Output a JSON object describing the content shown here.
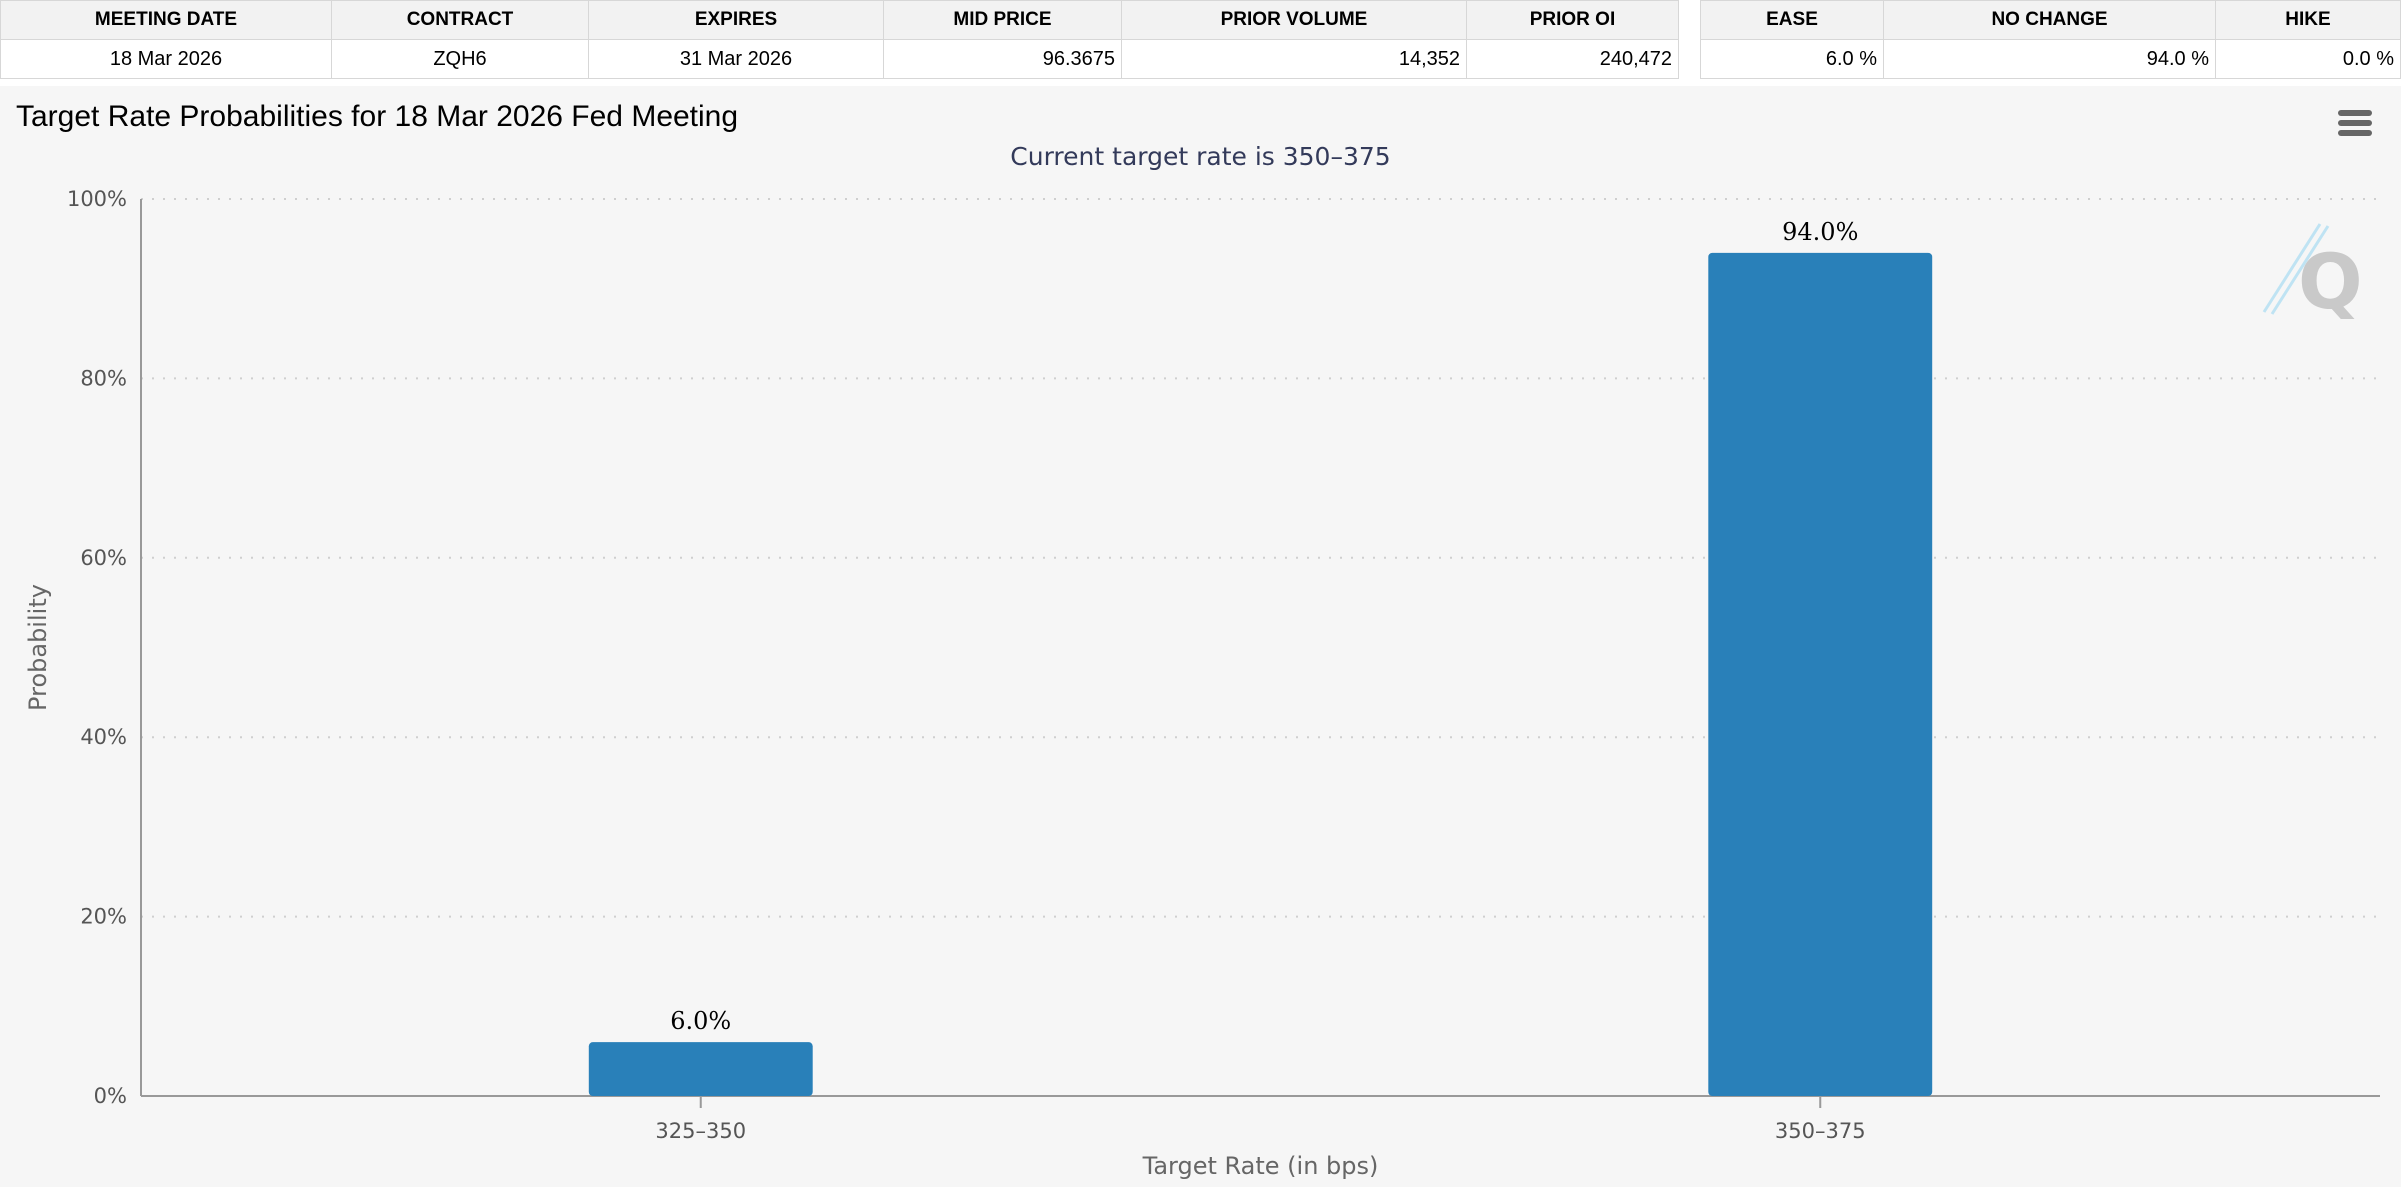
{
  "contract_table": {
    "headers": [
      "MEETING DATE",
      "CONTRACT",
      "EXPIRES",
      "MID PRICE",
      "PRIOR VOLUME",
      "PRIOR OI"
    ],
    "row": [
      "18 Mar 2026",
      "ZQH6",
      "31 Mar 2026",
      "96.3675",
      "14,352",
      "240,472"
    ]
  },
  "probability_table": {
    "headers": [
      "EASE",
      "NO CHANGE",
      "HIKE"
    ],
    "row": [
      "6.0 %",
      "94.0 %",
      "0.0 %"
    ]
  },
  "chart": {
    "title": "Target Rate Probabilities for 18 Mar 2026 Fed Meeting",
    "subtitle": "Current target rate is 350–375",
    "menu_icon": "hamburger-menu-icon",
    "watermark_icon": "q-logo-icon",
    "bar_color": "#2980b9"
  },
  "chart_data": {
    "type": "bar",
    "title": "Target Rate Probabilities for 18 Mar 2026 Fed Meeting",
    "subtitle": "Current target rate is 350–375",
    "categories": [
      "325–350",
      "350–375"
    ],
    "values": [
      6.0,
      94.0
    ],
    "data_labels": [
      "6.0%",
      "94.0%"
    ],
    "xlabel": "Target Rate (in bps)",
    "ylabel": "Probability",
    "ylim": [
      0,
      100
    ],
    "yticks": [
      "0%",
      "20%",
      "40%",
      "60%",
      "80%",
      "100%"
    ],
    "grid": "horizontal-dotted",
    "legend": "none"
  }
}
